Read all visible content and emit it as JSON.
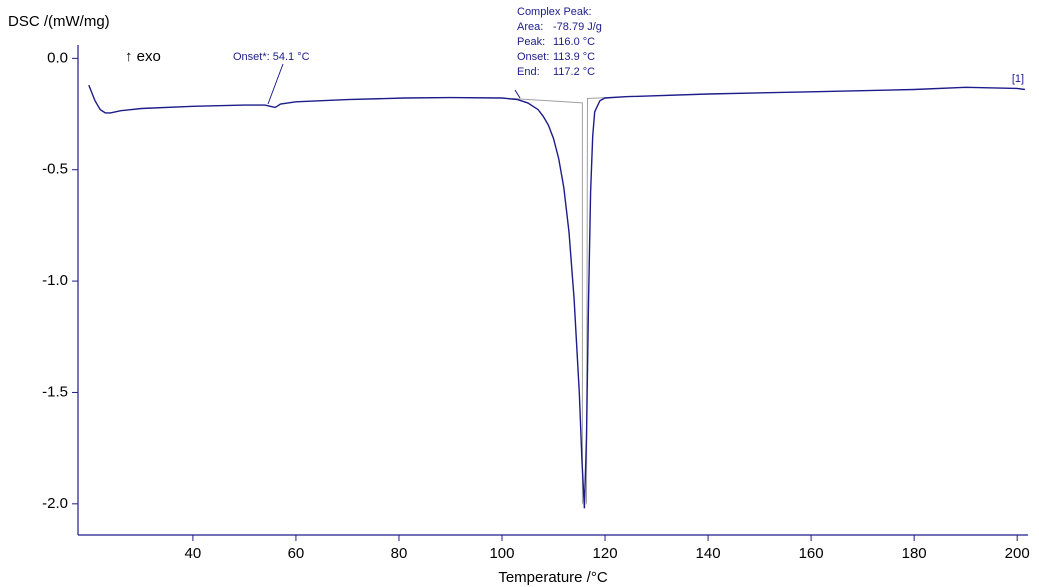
{
  "chart_data": {
    "type": "line",
    "y_label": "DSC /(mW/mg)",
    "x_label": "Temperature /°C",
    "exo_label": "↑ exo",
    "curve_label": "[1]",
    "onset_annotation": "Onset*: 54.1 °C",
    "peak_annotation": {
      "title": "Complex Peak:",
      "rows": [
        [
          "Area:",
          "-78.79 J/g"
        ],
        [
          "Peak:",
          "116.0 °C"
        ],
        [
          "Onset:",
          "113.9 °C"
        ],
        [
          "End:",
          "117.2 °C"
        ]
      ]
    },
    "xlim": [
      17.7,
      202.1
    ],
    "ylim": [
      -2.14,
      0.06
    ],
    "xticks": [
      40,
      60,
      80,
      100,
      120,
      140,
      160,
      180,
      200
    ],
    "yticks": [
      {
        "value": 0,
        "label": "0.0"
      },
      -0.5,
      {
        "value": -1,
        "label": "-1.0"
      },
      -1.5,
      {
        "value": -2,
        "label": "-2.0"
      }
    ],
    "series": [
      {
        "color": "#1c1c8a",
        "x": [
          19.8,
          21,
          22,
          23,
          24,
          26,
          30,
          40,
          50,
          54,
          55,
          56,
          57,
          60,
          70,
          81,
          90,
          100,
          103,
          105,
          107,
          108,
          109,
          110,
          111,
          112,
          113,
          114,
          115,
          115.5,
          116,
          116.4,
          116.8,
          117.2,
          117.6,
          118,
          119,
          120,
          124,
          140,
          160,
          180,
          190,
          200,
          201.5
        ],
        "values": [
          -0.12,
          -0.19,
          -0.23,
          -0.245,
          -0.245,
          -0.235,
          -0.225,
          -0.215,
          -0.21,
          -0.21,
          -0.215,
          -0.22,
          -0.205,
          -0.195,
          -0.185,
          -0.178,
          -0.176,
          -0.178,
          -0.185,
          -0.2,
          -0.23,
          -0.26,
          -0.3,
          -0.36,
          -0.45,
          -0.58,
          -0.78,
          -1.08,
          -1.5,
          -1.8,
          -2.02,
          -1.7,
          -1.1,
          -0.6,
          -0.35,
          -0.24,
          -0.19,
          -0.178,
          -0.172,
          -0.16,
          -0.15,
          -0.14,
          -0.13,
          -0.135,
          -0.14
        ]
      }
    ],
    "baselines": [
      {
        "color": "#a0a0a0",
        "x": [
          102,
          115.6,
          115.6
        ],
        "values": [
          -0.18,
          -0.2,
          -2.0
        ]
      },
      {
        "color": "#a0a0a0",
        "x": [
          116.4,
          116.6,
          124
        ],
        "values": [
          -2.0,
          -0.18,
          -0.172
        ]
      }
    ]
  }
}
